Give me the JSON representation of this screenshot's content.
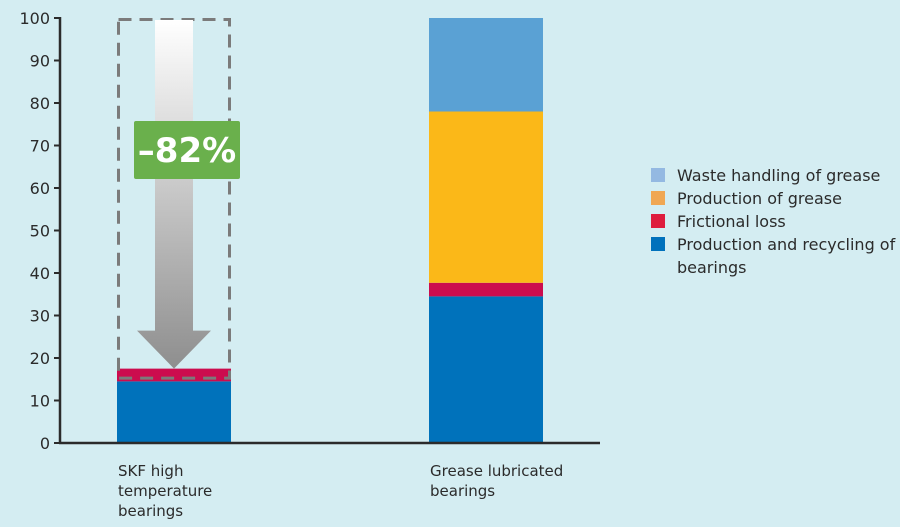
{
  "chart_data": {
    "type": "bar",
    "stacked": true,
    "categories": [
      "SKF high temperature bearings",
      "Grease lubricated bearings"
    ],
    "series": [
      {
        "name": "Production and recycling of bearings",
        "color": "#0072bb",
        "values": [
          14.5,
          34.5
        ]
      },
      {
        "name": "Frictional loss",
        "color": "#cc0c4e",
        "values": [
          3,
          3.2
        ]
      },
      {
        "name": "Production of grease",
        "color": "#fbb818",
        "values": [
          0,
          40.3
        ]
      },
      {
        "name": "Waste handling of grease",
        "color": "#5aa1d4",
        "values": [
          0,
          22
        ]
      }
    ],
    "legend_colors": [
      "#94b9e2",
      "#f0a753",
      "#de1d3e",
      "#0071bc"
    ],
    "legend_order": [
      "Waste handling of grease",
      "Production of grease",
      "Frictional loss",
      "Production and recycling of bearings"
    ],
    "legend_position": "right",
    "ylim": [
      0,
      100
    ],
    "yticks": [
      0,
      10,
      20,
      30,
      40,
      50,
      60,
      70,
      80,
      90,
      100
    ],
    "xlabel": "",
    "ylabel": "",
    "title": "",
    "grid": false,
    "annotation": {
      "text": "–82%",
      "badge_color": "#6ab04c",
      "arrow_from": 100,
      "arrow_to": 17.5,
      "category": "SKF high temperature bearings"
    }
  }
}
